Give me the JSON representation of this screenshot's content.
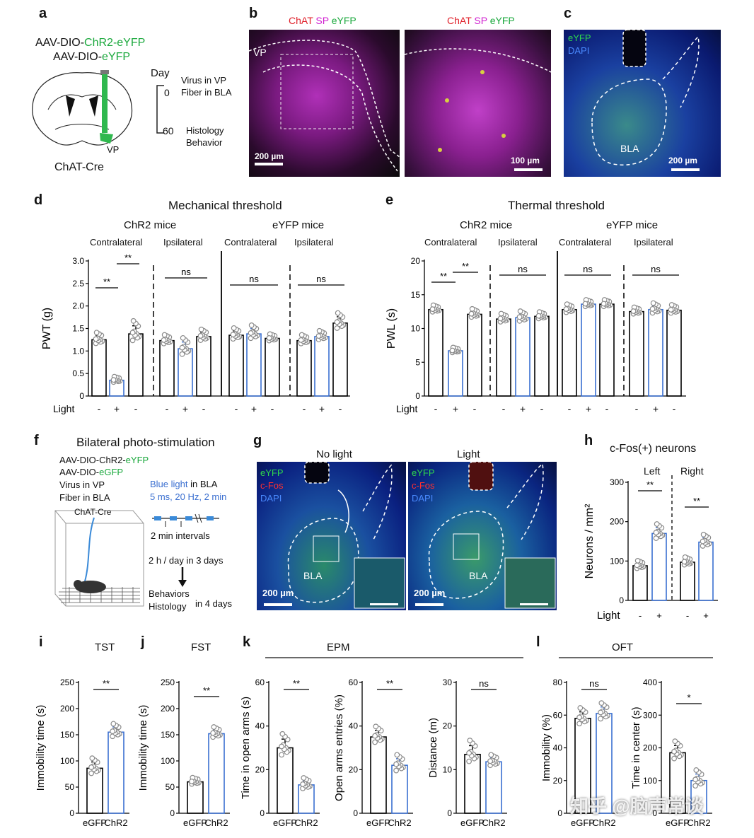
{
  "panel_labels": [
    "a",
    "b",
    "c",
    "d",
    "e",
    "f",
    "g",
    "h",
    "i",
    "j",
    "k",
    "l"
  ],
  "a": {
    "virus1_prefix": "AAV-DIO-",
    "virus1_colored": "ChR2-eYFP",
    "virus2_prefix": "AAV-DIO-",
    "virus2_colored": "eYFP",
    "day_label": "Day",
    "t0": "0",
    "t0_text1": "Virus in VP",
    "t0_text2": "Fiber in BLA",
    "t60": "60",
    "t60_text1": "Histology",
    "t60_text2": "Behavior",
    "vp": "VP",
    "mouse": "ChAT-Cre",
    "colors": {
      "green": "#1aa83c"
    }
  },
  "b": {
    "stain_chat": "ChAT",
    "stain_sp": "SP",
    "stain_eyfp": "eYFP",
    "region": "VP",
    "scale_left": "200 µm",
    "scale_right": "100 µm"
  },
  "c": {
    "stain1": "eYFP",
    "stain2": "DAPI",
    "region": "BLA",
    "scale": "200 µm"
  },
  "d": {
    "title": "Mechanical threshold",
    "group1": "ChR2 mice",
    "group2": "eYFP mice",
    "sub": [
      "Contralateral",
      "Ipsilateral",
      "Contralateral",
      "Ipsilateral"
    ],
    "sig": [
      "**",
      "**",
      "ns",
      "ns",
      "ns"
    ]
  },
  "e": {
    "title": "Thermal threshold",
    "group1": "ChR2 mice",
    "group2": "eYFP mice",
    "sub": [
      "Contralateral",
      "Ipsilateral",
      "Contralateral",
      "Ipsilateral"
    ],
    "sig": [
      "**",
      "**",
      "ns",
      "ns",
      "ns"
    ]
  },
  "light_label": "Light",
  "light_signs": [
    "-",
    "+",
    "-"
  ],
  "f": {
    "title": "Bilateral photo-stimulation",
    "line1_prefix": "AAV-DIO-ChR2-",
    "line1_colored": "eYFP",
    "line2_prefix": "AAV-DIO-",
    "line2_colored": "eGFP",
    "line3": "Virus in VP",
    "line4": "Fiber in BLA",
    "mouse": "ChAT-Cre",
    "blue_light": "Blue light",
    "in_bla": " in BLA",
    "params": "5 ms, 20 Hz, 2 min",
    "intervals": "2 min intervals",
    "schedule": "2 h / day in 3 days",
    "after1": "Behaviors",
    "after2": "Histology",
    "after3": "in 4 days"
  },
  "g": {
    "cond1": "No light",
    "cond2": "Light",
    "stain1": "eYFP",
    "stain2": "c-Fos",
    "stain3": "DAPI",
    "region": "BLA",
    "scale": "200 µm"
  },
  "h": {
    "title": "c-Fos(+) neurons",
    "left": "Left",
    "right": "Right",
    "sig": [
      "**",
      "**"
    ],
    "light_signs": [
      "-",
      "+",
      "-",
      "+"
    ]
  },
  "i": {
    "title": "TST",
    "sig": "**"
  },
  "j": {
    "title": "FST",
    "sig": "**"
  },
  "k": {
    "title": "EPM",
    "sig": [
      "**",
      "**",
      "ns"
    ]
  },
  "l": {
    "title": "OFT",
    "sig": [
      "ns",
      "*"
    ]
  },
  "groups2": [
    "eGFP",
    "ChR2"
  ],
  "watermark": "知乎 @脑声常谈",
  "colors": {
    "blue": "#3a6fd0",
    "black": "#000000",
    "green": "#1aa83c",
    "red": "#e0202a",
    "magenta": "#d020d0",
    "dot": "#8a8a8a"
  },
  "chart_data": [
    {
      "panel": "d",
      "type": "bar",
      "ylabel": "PWT (g)",
      "ylim": [
        0,
        3.0
      ],
      "yticks": [
        "0",
        "0.5",
        "1.0",
        "1.5",
        "2.0",
        "2.5",
        "3.0"
      ],
      "categories": [
        "-",
        "+",
        "-",
        "-",
        "+",
        "-",
        "-",
        "+",
        "-",
        "-",
        "+",
        "-"
      ],
      "values": [
        1.25,
        0.35,
        1.38,
        1.23,
        1.05,
        1.32,
        1.35,
        1.38,
        1.28,
        1.23,
        1.32,
        1.62
      ],
      "errors": [
        0.1,
        0.05,
        0.18,
        0.08,
        0.15,
        0.1,
        0.1,
        0.12,
        0.06,
        0.08,
        0.08,
        0.14
      ],
      "light": [
        false,
        true,
        false,
        false,
        true,
        false,
        false,
        true,
        false,
        false,
        true,
        false
      ]
    },
    {
      "panel": "e",
      "type": "bar",
      "ylabel": "PWL (s)",
      "ylim": [
        0,
        20
      ],
      "yticks": [
        "0",
        "5",
        "10",
        "15",
        "20"
      ],
      "categories": [
        "-",
        "+",
        "-",
        "-",
        "+",
        "-",
        "-",
        "+",
        "-",
        "-",
        "+",
        "-"
      ],
      "values": [
        12.8,
        6.7,
        12.1,
        11.4,
        11.6,
        11.8,
        12.8,
        13.6,
        13.6,
        12.5,
        12.8,
        12.7
      ],
      "errors": [
        0.4,
        0.3,
        0.5,
        0.5,
        0.6,
        0.4,
        0.5,
        0.4,
        0.4,
        0.4,
        0.6,
        0.5
      ],
      "light": [
        false,
        true,
        false,
        false,
        true,
        false,
        false,
        true,
        false,
        false,
        true,
        false
      ]
    },
    {
      "panel": "h",
      "type": "bar",
      "ylabel": "Neurons / mm²",
      "ylim": [
        0,
        300
      ],
      "yticks": [
        "0",
        "100",
        "200",
        "300"
      ],
      "categories": [
        "-",
        "+",
        "-",
        "+"
      ],
      "values": [
        88,
        170,
        97,
        148
      ],
      "errors": [
        8,
        15,
        8,
        12
      ],
      "light": [
        false,
        true,
        false,
        true
      ]
    },
    {
      "panel": "i",
      "type": "bar",
      "ylabel": "Immobility time (s)",
      "ylim": [
        0,
        250
      ],
      "yticks": [
        "0",
        "50",
        "100",
        "150",
        "200",
        "250"
      ],
      "categories": [
        "eGFP",
        "ChR2"
      ],
      "values": [
        86,
        155
      ],
      "errors": [
        12,
        10
      ],
      "light": [
        false,
        true
      ]
    },
    {
      "panel": "j",
      "type": "bar",
      "ylabel": "Immobility time (s)",
      "ylim": [
        0,
        250
      ],
      "yticks": [
        "0",
        "50",
        "100",
        "150",
        "200",
        "250"
      ],
      "categories": [
        "eGFP",
        "ChR2"
      ],
      "values": [
        60,
        152
      ],
      "errors": [
        5,
        8
      ],
      "light": [
        false,
        true
      ]
    },
    {
      "panel": "k1",
      "type": "bar",
      "ylabel": "Time in open arms (s)",
      "ylim": [
        0,
        60
      ],
      "yticks": [
        "0",
        "20",
        "40",
        "60"
      ],
      "categories": [
        "eGFP",
        "ChR2"
      ],
      "values": [
        30,
        13
      ],
      "errors": [
        4,
        2
      ],
      "light": [
        false,
        true
      ]
    },
    {
      "panel": "k2",
      "type": "bar",
      "ylabel": "Open arms entries (%)",
      "ylim": [
        0,
        60
      ],
      "yticks": [
        "0",
        "20",
        "40",
        "60"
      ],
      "categories": [
        "eGFP",
        "ChR2"
      ],
      "values": [
        35,
        22
      ],
      "errors": [
        3,
        3
      ],
      "light": [
        false,
        true
      ]
    },
    {
      "panel": "k3",
      "type": "bar",
      "ylabel": "Distance (m)",
      "ylim": [
        0,
        30
      ],
      "yticks": [
        "0",
        "10",
        "20",
        "30"
      ],
      "categories": [
        "eGFP",
        "ChR2"
      ],
      "values": [
        13.5,
        11.8
      ],
      "errors": [
        2,
        1
      ],
      "light": [
        false,
        true
      ]
    },
    {
      "panel": "l1",
      "type": "bar",
      "ylabel": "Immobility (%)",
      "ylim": [
        0,
        80
      ],
      "yticks": [
        "0",
        "20",
        "40",
        "60",
        "80"
      ],
      "categories": [
        "eGFP",
        "ChR2"
      ],
      "values": [
        58,
        61
      ],
      "errors": [
        4,
        4
      ],
      "light": [
        false,
        true
      ]
    },
    {
      "panel": "l2",
      "type": "bar",
      "ylabel": "Time in center (s)",
      "ylim": [
        0,
        400
      ],
      "yticks": [
        "0",
        "100",
        "200",
        "300",
        "400"
      ],
      "categories": [
        "eGFP",
        "ChR2"
      ],
      "values": [
        185,
        100
      ],
      "errors": [
        22,
        20
      ],
      "light": [
        false,
        true
      ]
    }
  ]
}
